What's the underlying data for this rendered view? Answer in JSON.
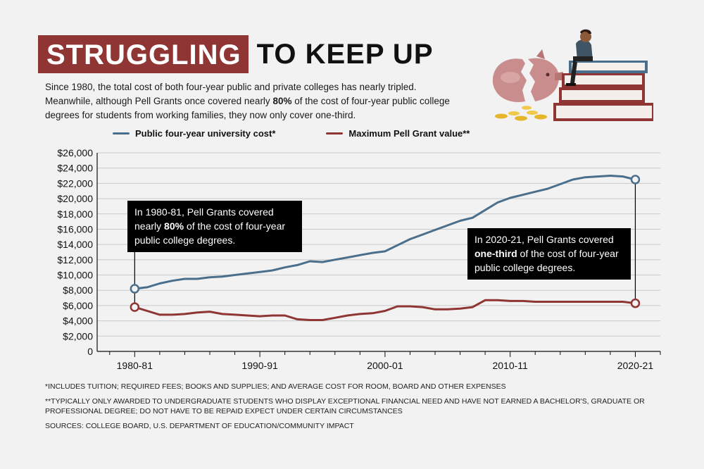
{
  "header": {
    "title_highlight": "STRUGGLING",
    "title_rest": "TO KEEP UP",
    "subtitle_line1": "Since 1980, the total cost of both four-year public and private colleges has nearly tripled.",
    "subtitle_line2_pre": "Meanwhile, although Pell Grants once covered nearly ",
    "subtitle_line2_bold": "80%",
    "subtitle_line2_post": " of the cost of four-year public college",
    "subtitle_line3": "degrees for students from working families, they now only cover one-third."
  },
  "callouts": {
    "c1_pre": "In 1980-81, Pell Grants covered nearly ",
    "c1_bold": "80%",
    "c1_post": " of the cost of four-year public college degrees.",
    "c2_pre": "In 2020-21, Pell Grants covered ",
    "c2_bold": "one-third",
    "c2_post": " of the cost of four-year public college degrees."
  },
  "footnotes": {
    "note1": "*INCLUDES TUITION; REQUIRED FEES; BOOKS AND SUPPLIES; AND AVERAGE COST FOR ROOM, BOARD AND OTHER EXPENSES",
    "note2": "**TYPICALLY ONLY AWARDED TO UNDERGRADUATE STUDENTS WHO DISPLAY EXCEPTIONAL FINANCIAL NEED AND HAVE NOT EARNED A BACHELOR'S, GRADUATE OR PROFESSIONAL DEGREE; DO NOT HAVE TO BE REPAID EXPECT UNDER CERTAIN CIRCUMSTANCES",
    "sources": "SOURCES: COLLEGE BOARD, U.S. DEPARTMENT OF EDUCATION/COMMUNITY IMPACT"
  },
  "illustration": {
    "icons": [
      "student-icon",
      "book-stack-icon",
      "broken-piggy-bank-icon",
      "coins-icon"
    ]
  },
  "colors": {
    "accent": "#8f3533",
    "public_cost": "#4a6f8c",
    "pell": "#8f3533",
    "callout_bg": "#000000"
  },
  "chart_data": {
    "type": "line",
    "title": "",
    "xlabel": "",
    "ylabel": "",
    "ylim": [
      0,
      26000
    ],
    "yticks": [
      0,
      2000,
      4000,
      6000,
      8000,
      10000,
      12000,
      14000,
      16000,
      18000,
      20000,
      22000,
      24000,
      26000
    ],
    "ytick_labels": [
      "0",
      "$2,000",
      "$4,000",
      "$6,000",
      "$8,000",
      "$10,000",
      "$12,000",
      "$14,000",
      "$16,000",
      "$18,000",
      "$20,000",
      "$22,000",
      "$24,000",
      "$26,000"
    ],
    "xticks": [
      1980,
      1990,
      2000,
      2010,
      2020
    ],
    "xtick_labels": [
      "1980-81",
      "1990-91",
      "2000-01",
      "2010-11",
      "2020-21"
    ],
    "xlim": [
      1977,
      2022
    ],
    "grid": true,
    "legend_position": "top-left",
    "x": [
      1980,
      1981,
      1982,
      1983,
      1984,
      1985,
      1986,
      1987,
      1988,
      1989,
      1990,
      1991,
      1992,
      1993,
      1994,
      1995,
      1996,
      1997,
      1998,
      1999,
      2000,
      2001,
      2002,
      2003,
      2004,
      2005,
      2006,
      2007,
      2008,
      2009,
      2010,
      2011,
      2012,
      2013,
      2014,
      2015,
      2016,
      2017,
      2018,
      2019,
      2020
    ],
    "series": [
      {
        "name": "Public four-year university cost*",
        "color": "#4a6f8c",
        "values": [
          8200,
          8400,
          8900,
          9250,
          9500,
          9500,
          9700,
          9800,
          10000,
          10200,
          10400,
          10600,
          11000,
          11300,
          11800,
          11700,
          12000,
          12300,
          12600,
          12900,
          13100,
          13900,
          14700,
          15300,
          15900,
          16500,
          17100,
          17500,
          18500,
          19500,
          20100,
          20500,
          20900,
          21300,
          21900,
          22500,
          22800,
          22900,
          23000,
          22900,
          22500
        ]
      },
      {
        "name": "Maximum Pell Grant value**",
        "color": "#8f3533",
        "values": [
          5800,
          5300,
          4800,
          4800,
          4900,
          5100,
          5200,
          4900,
          4800,
          4700,
          4600,
          4700,
          4700,
          4200,
          4100,
          4100,
          4400,
          4700,
          4900,
          5000,
          5300,
          5900,
          5900,
          5800,
          5500,
          5500,
          5600,
          5800,
          6700,
          6700,
          6600,
          6600,
          6500,
          6500,
          6500,
          6500,
          6500,
          6500,
          6500,
          6500,
          6300
        ]
      }
    ]
  }
}
